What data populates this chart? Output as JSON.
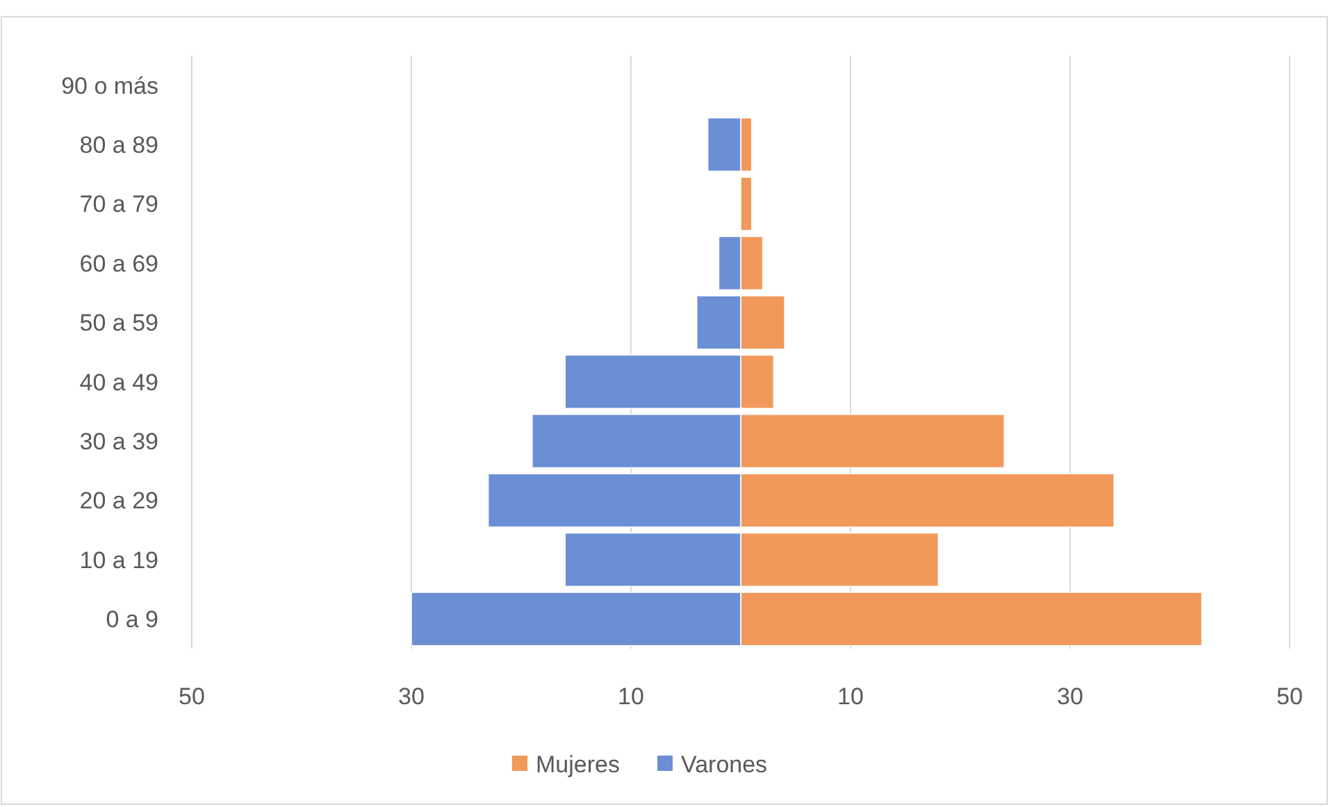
{
  "chart_data": {
    "type": "bar",
    "orientation": "horizontal",
    "stacked": true,
    "categories": [
      "90 o más",
      "80 a 89",
      "70 a 79",
      "60 a 69",
      "50 a 59",
      "40 a 49",
      "30 a 39",
      "20 a 29",
      "10 a 19",
      "0 a 9"
    ],
    "series": [
      {
        "name": "Mujeres",
        "color": "#f0995a",
        "values": [
          0,
          1,
          1,
          2,
          4,
          3,
          24,
          34,
          18,
          42
        ]
      },
      {
        "name": "Varones",
        "color": "#6a8fd4",
        "values": [
          0,
          -3,
          0,
          -2,
          -4,
          -16,
          -19,
          -23,
          -16,
          -30
        ]
      }
    ],
    "xlim": [
      -50,
      50
    ],
    "xticks": [
      {
        "value": -50,
        "label": "50"
      },
      {
        "value": -30,
        "label": "30"
      },
      {
        "value": -10,
        "label": "10"
      },
      {
        "value": 10,
        "label": "10"
      },
      {
        "value": 30,
        "label": "30"
      },
      {
        "value": 50,
        "label": "50"
      }
    ],
    "grid": "x",
    "legend": "bottom"
  }
}
